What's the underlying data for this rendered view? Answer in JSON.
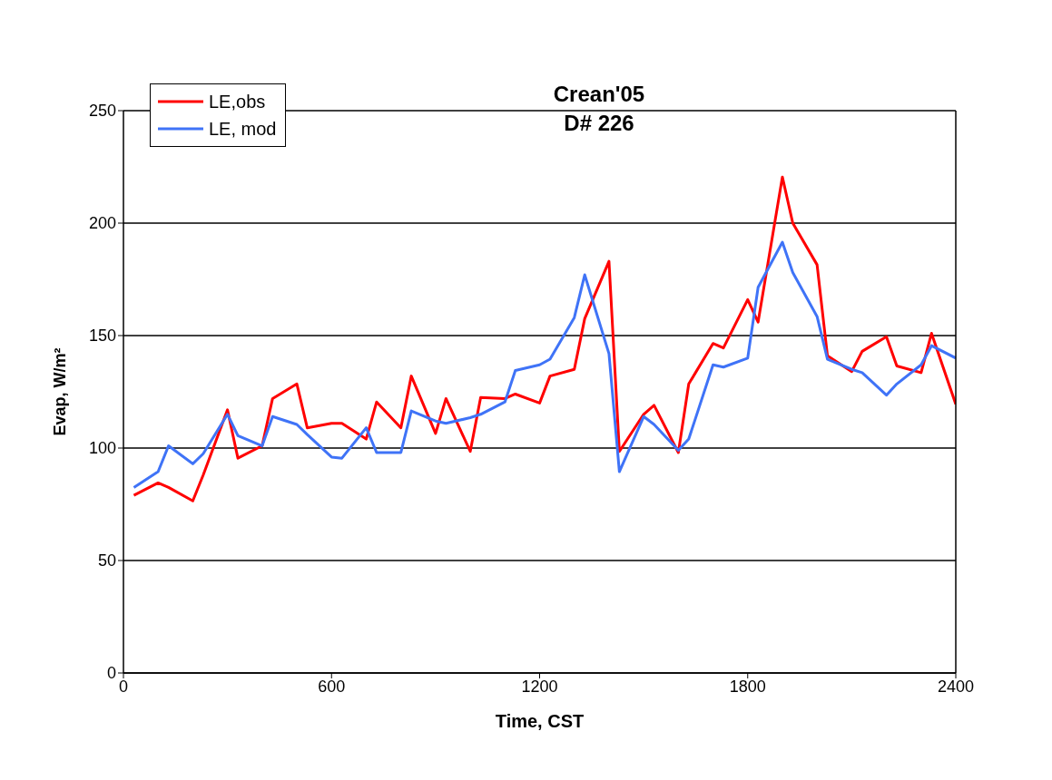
{
  "chart_data": {
    "type": "line",
    "title": "Crean'05",
    "subtitle": "D# 226",
    "xlabel": "Time, CST",
    "ylabel": "Evap, W/m²",
    "x": [
      30,
      100,
      130,
      200,
      230,
      300,
      330,
      400,
      430,
      500,
      530,
      600,
      630,
      700,
      730,
      800,
      830,
      900,
      930,
      1000,
      1030,
      1100,
      1130,
      1200,
      1230,
      1300,
      1330,
      1400,
      1430,
      1500,
      1530,
      1600,
      1630,
      1700,
      1730,
      1800,
      1830,
      1900,
      1930,
      2000,
      2030,
      2100,
      2130,
      2200,
      2230,
      2300,
      2330,
      2400
    ],
    "series": [
      {
        "name": "LE,obs",
        "color": "#ff0000",
        "values": [
          79,
          84.5,
          82.5,
          76.5,
          88,
          117,
          95.5,
          101,
          122,
          128.5,
          109,
          111,
          111,
          104,
          120.5,
          109,
          132,
          106.5,
          122,
          98.5,
          122.5,
          122,
          124,
          120,
          132,
          135,
          157.5,
          183,
          98.5,
          115,
          119,
          98,
          128.5,
          146.5,
          144.5,
          166,
          156,
          220.5,
          200,
          181.5,
          141,
          134,
          143,
          149.5,
          136.5,
          133.5,
          151,
          119.5
        ]
      },
      {
        "name": "LE, mod",
        "color": "#3f73f7",
        "values": [
          82.5,
          89.5,
          101,
          93,
          97.5,
          115,
          105.5,
          101,
          114,
          110.5,
          106,
          96,
          95.5,
          109,
          98,
          98,
          116.5,
          112,
          111,
          113.5,
          115,
          120.5,
          134.5,
          137,
          139.5,
          158,
          177,
          142,
          89.5,
          114,
          110.5,
          99,
          104,
          137,
          136,
          140,
          171.5,
          191.5,
          178,
          158.5,
          139.5,
          135,
          133.5,
          123.5,
          128.5,
          137,
          145.5,
          140
        ]
      }
    ],
    "xlim": [
      0,
      2400
    ],
    "xticks": [
      0,
      600,
      1200,
      1800,
      2400
    ],
    "ylim": [
      0,
      250
    ],
    "yticks": [
      0,
      50,
      100,
      150,
      200,
      250
    ],
    "grid": "y",
    "legend": "top left",
    "marker": "none",
    "line_style": "solid"
  }
}
